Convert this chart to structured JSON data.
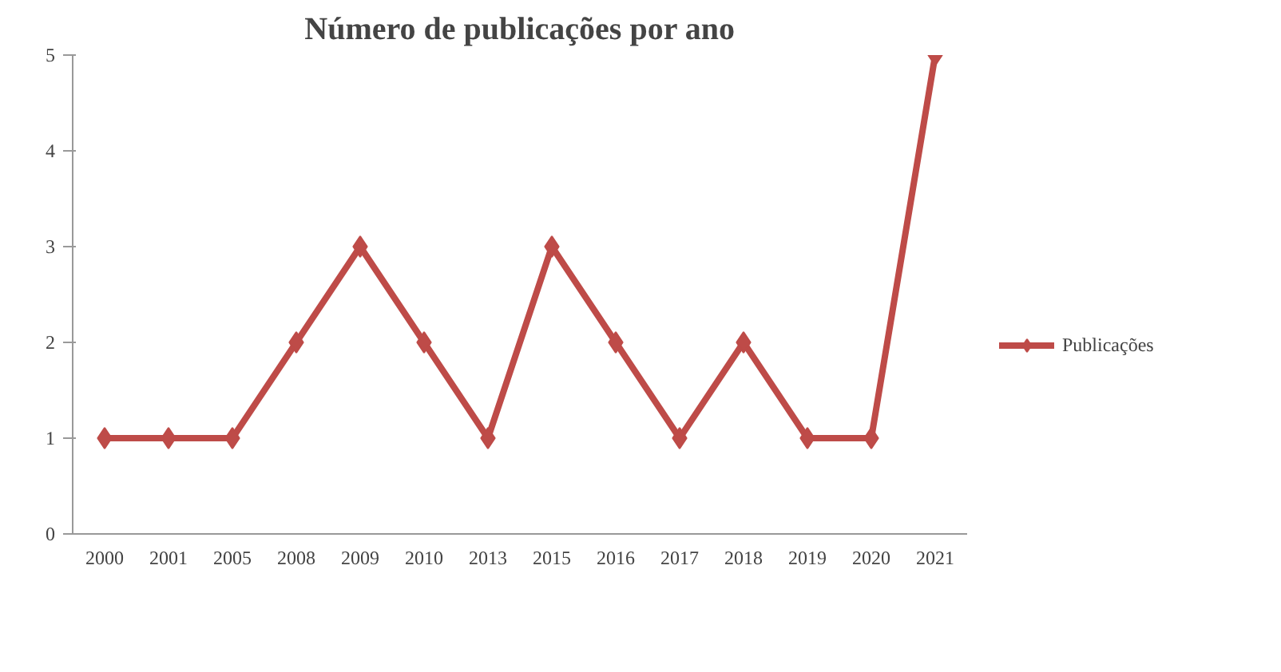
{
  "chart_data": {
    "type": "line",
    "title": "Número de publicações por ano",
    "categories": [
      "2000",
      "2001",
      "2005",
      "2008",
      "2009",
      "2010",
      "2013",
      "2015",
      "2016",
      "2017",
      "2018",
      "2019",
      "2020",
      "2021"
    ],
    "series": [
      {
        "name": "Publicações",
        "color": "#be4b48",
        "values": [
          1,
          1,
          1,
          2,
          3,
          2,
          1,
          3,
          2,
          1,
          2,
          1,
          1,
          5
        ]
      }
    ],
    "ylim": [
      0,
      5
    ],
    "yticks": [
      0,
      1,
      2,
      3,
      4,
      5
    ],
    "grid": false,
    "legend": "right",
    "marker": "diamond",
    "line_style": "solid"
  }
}
